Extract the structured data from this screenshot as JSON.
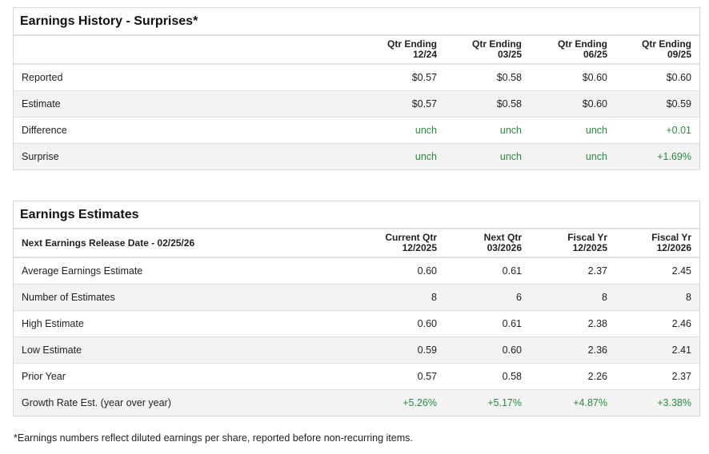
{
  "colors": {
    "positive": "#2a8a3e",
    "stripe": "#f3f3f3",
    "border": "#d6d6d6"
  },
  "history": {
    "title": "Earnings History - Surprises*",
    "header_label": "",
    "columns": [
      [
        "Qtr Ending",
        "12/24"
      ],
      [
        "Qtr Ending",
        "03/25"
      ],
      [
        "Qtr Ending",
        "06/25"
      ],
      [
        "Qtr Ending",
        "09/25"
      ]
    ],
    "rows": [
      {
        "label": "Reported",
        "values": [
          "$0.57",
          "$0.58",
          "$0.60",
          "$0.60"
        ],
        "positive": false
      },
      {
        "label": "Estimate",
        "values": [
          "$0.57",
          "$0.58",
          "$0.60",
          "$0.59"
        ],
        "positive": false
      },
      {
        "label": "Difference",
        "values": [
          "unch",
          "unch",
          "unch",
          "+0.01"
        ],
        "positive": true
      },
      {
        "label": "Surprise",
        "values": [
          "unch",
          "unch",
          "unch",
          "+1.69%"
        ],
        "positive": true
      }
    ]
  },
  "estimates": {
    "title": "Earnings Estimates",
    "header_label": "Next Earnings Release Date - 02/25/26",
    "columns": [
      [
        "Current Qtr",
        "12/2025"
      ],
      [
        "Next Qtr",
        "03/2026"
      ],
      [
        "Fiscal Yr",
        "12/2025"
      ],
      [
        "Fiscal Yr",
        "12/2026"
      ]
    ],
    "rows": [
      {
        "label": "Average Earnings Estimate",
        "values": [
          "0.60",
          "0.61",
          "2.37",
          "2.45"
        ],
        "positive": false
      },
      {
        "label": "Number of Estimates",
        "values": [
          "8",
          "6",
          "8",
          "8"
        ],
        "positive": false
      },
      {
        "label": "High Estimate",
        "values": [
          "0.60",
          "0.61",
          "2.38",
          "2.46"
        ],
        "positive": false
      },
      {
        "label": "Low Estimate",
        "values": [
          "0.59",
          "0.60",
          "2.36",
          "2.41"
        ],
        "positive": false
      },
      {
        "label": "Prior Year",
        "values": [
          "0.57",
          "0.58",
          "2.26",
          "2.37"
        ],
        "positive": false
      },
      {
        "label": "Growth Rate Est. (year over year)",
        "values": [
          "+5.26%",
          "+5.17%",
          "+4.87%",
          "+3.38%"
        ],
        "positive": true
      }
    ]
  },
  "footnote": "*Earnings numbers reflect diluted earnings per share, reported before non-recurring items."
}
